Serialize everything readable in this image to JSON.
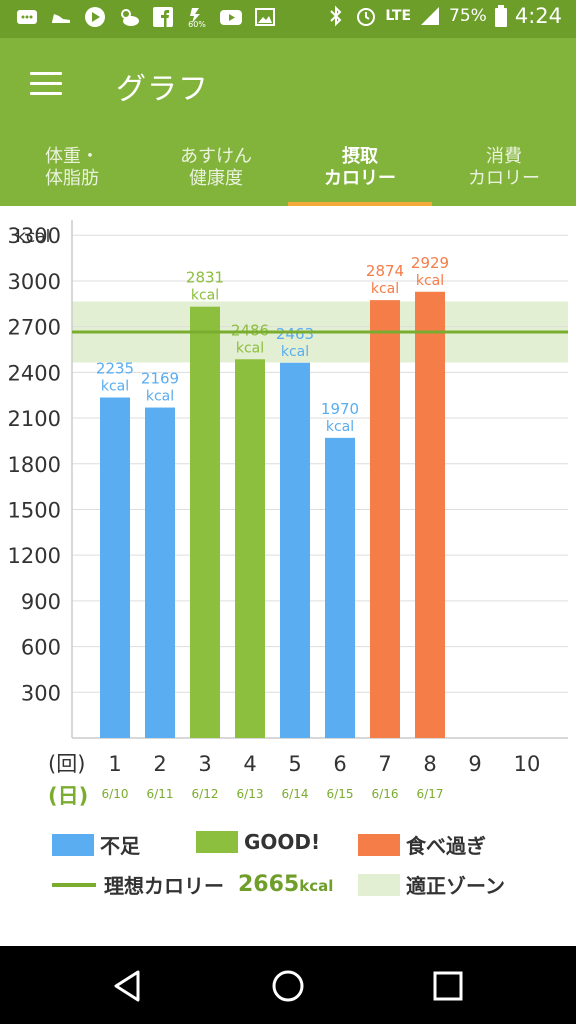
{
  "status_bar": {
    "battery": "75%",
    "network": "LTE",
    "time": "4:24",
    "left_icons": [
      "chat-icon",
      "shoe-icon",
      "play-icon",
      "weather-icon",
      "facebook-icon",
      "saver-icon",
      "youtube-icon",
      "photo-icon"
    ],
    "saver_label": "60%"
  },
  "app_bar": {
    "title": "グラフ",
    "menu_icon": "hamburger-menu-icon"
  },
  "tabs": [
    {
      "l1": "体重・",
      "l2": "体脂肪",
      "active": false
    },
    {
      "l1": "あすけん",
      "l2": "健康度",
      "active": false
    },
    {
      "l1": "摂取",
      "l2": "カロリー",
      "active": true
    },
    {
      "l1": "消費",
      "l2": "カロリー",
      "active": false
    }
  ],
  "chart_data": {
    "type": "bar",
    "ylabel": "kcal",
    "ylim": [
      0,
      3400
    ],
    "yticks": [
      300,
      600,
      900,
      1200,
      1500,
      1800,
      2100,
      2400,
      2700,
      3000,
      3300
    ],
    "x_row_label": "(回)",
    "date_row_label": "(日)",
    "categories": [
      "1",
      "2",
      "3",
      "4",
      "5",
      "6",
      "7",
      "8",
      "9",
      "10"
    ],
    "dates": [
      "6/10",
      "6/11",
      "6/12",
      "6/13",
      "6/14",
      "6/15",
      "6/16",
      "6/17",
      "",
      ""
    ],
    "values": [
      2235,
      2169,
      2831,
      2486,
      2463,
      1970,
      2874,
      2929,
      null,
      null
    ],
    "status": [
      "short",
      "short",
      "good",
      "good",
      "short",
      "short",
      "over",
      "over",
      null,
      null
    ],
    "value_unit": "kcal",
    "ideal_line": 2665,
    "ideal_zone": [
      2465,
      2865
    ],
    "grid": true,
    "colors": {
      "short": "#5aadf0",
      "good": "#8cbf3e",
      "over": "#f47d48",
      "ideal_line": "#7aac2f",
      "zone": "#e3efd2",
      "date_text": "#7aac2f"
    }
  },
  "legend": {
    "short": "不足",
    "good": "GOOD!",
    "over": "食べ過ぎ",
    "ideal_label": "理想カロリー",
    "ideal_value": "2665",
    "ideal_unit": "kcal",
    "zone_label": "適正ゾーン"
  },
  "nav": {
    "icons": [
      "back-icon",
      "home-icon",
      "recents-icon"
    ]
  }
}
